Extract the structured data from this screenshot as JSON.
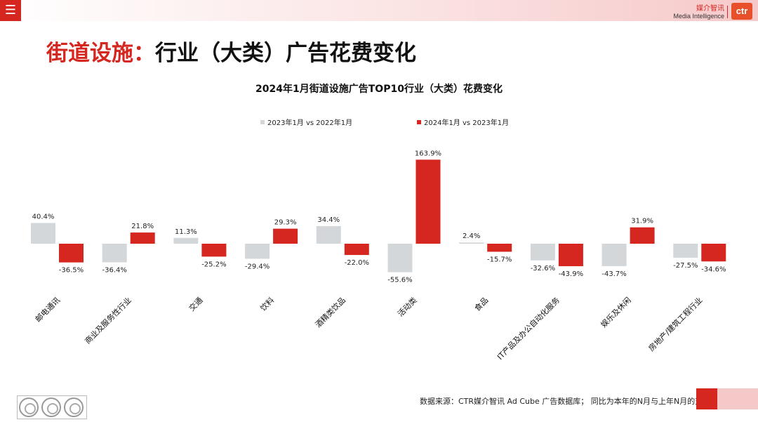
{
  "header": {
    "menu_icon": "hamburger-icon",
    "brand_cn": "媒介智讯",
    "brand_en": "Media Intelligence",
    "logo_text": "ctr"
  },
  "page": {
    "title_red": "街道设施：",
    "title_black": "行业（大类）广告花费变化"
  },
  "footer": {
    "source": "数据来源：CTR媒介智讯 Ad Cube 广告数据库； 同比为本年的N月与上年N月的对比"
  },
  "chart_data": {
    "type": "bar",
    "title": "2024年1月街道设施广告TOP10行业（大类）花费变化",
    "legend_position": "top-center",
    "grid": false,
    "categories": [
      "邮电通讯",
      "商业及服务性行业",
      "交通",
      "饮料",
      "酒精类饮品",
      "活动类",
      "食品",
      "IT产品及办公自动化服务",
      "娱乐及休闲",
      "房地产/建筑工程行业"
    ],
    "series": [
      {
        "name": "2023年1月 vs 2022年1月",
        "color": "#d3d7da",
        "values": [
          40.4,
          -36.4,
          11.3,
          -29.4,
          34.4,
          -55.6,
          2.4,
          -32.6,
          -43.7,
          -27.5
        ],
        "labels": [
          "40.4%",
          "-36.4%",
          "11.3%",
          "-29.4%",
          "34.4%",
          "-55.6%",
          "2.4%",
          "-32.6%",
          "-43.7%",
          "-27.5%"
        ]
      },
      {
        "name": "2024年1月 vs 2023年1月",
        "color": "#d5261f",
        "values": [
          -36.5,
          21.8,
          -25.2,
          29.3,
          -22.0,
          163.9,
          -15.7,
          -43.9,
          31.9,
          -34.6
        ],
        "labels": [
          "-36.5%",
          "21.8%",
          "-25.2%",
          "29.3%",
          "-22.0%",
          "163.9%",
          "-15.7%",
          "-43.9%",
          "31.9%",
          "-34.6%"
        ]
      }
    ]
  }
}
